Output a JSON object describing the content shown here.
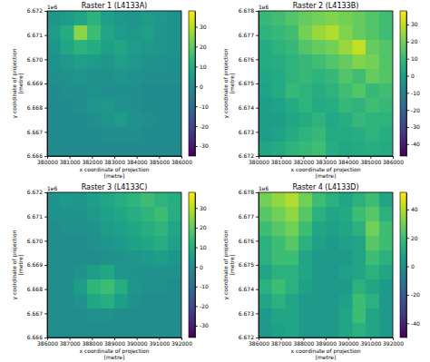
{
  "chart_data": [
    {
      "type": "heatmap",
      "title": "Raster 1 (L4133A)",
      "xlabel": "x coordinate of projection\n[metre]",
      "ylabel": "y coordinate of projection\n[metre]",
      "y_offset_label": "1e6",
      "xlim": [
        380000,
        386000
      ],
      "ylim": [
        6666000,
        6672000
      ],
      "xticks": [
        380000,
        381000,
        382000,
        383000,
        384000,
        385000,
        386000
      ],
      "yticks": [
        {
          "value": 6666000,
          "label": "6.666"
        },
        {
          "value": 6667000,
          "label": "6.667"
        },
        {
          "value": 6668000,
          "label": "6.668"
        },
        {
          "value": 6669000,
          "label": "6.669"
        },
        {
          "value": 6670000,
          "label": "6.670"
        },
        {
          "value": 6671000,
          "label": "6.671"
        },
        {
          "value": 6672000,
          "label": "6.672"
        }
      ],
      "x_edges": [
        380000,
        380600,
        381200,
        381800,
        382400,
        383000,
        383600,
        384200,
        384800,
        385400,
        386000
      ],
      "y_edges": [
        6672000,
        6671400,
        6670800,
        6670200,
        6669600,
        6669000,
        6668400,
        6667800,
        6667200,
        6666600,
        6666000
      ],
      "cells": [
        [
          3,
          5,
          8,
          12,
          6,
          4,
          3,
          5,
          4,
          2
        ],
        [
          5,
          10,
          25,
          15,
          8,
          5,
          4,
          6,
          3,
          2
        ],
        [
          3,
          8,
          12,
          10,
          6,
          8,
          5,
          4,
          3,
          2
        ],
        [
          2,
          4,
          6,
          5,
          3,
          6,
          4,
          2,
          2,
          1
        ],
        [
          1,
          2,
          3,
          2,
          2,
          3,
          2,
          1,
          1,
          1
        ],
        [
          0,
          1,
          1,
          2,
          1,
          1,
          1,
          0,
          0,
          0
        ],
        [
          0,
          0,
          1,
          3,
          4,
          2,
          1,
          0,
          0,
          0
        ],
        [
          0,
          0,
          0,
          1,
          3,
          5,
          2,
          1,
          0,
          0
        ],
        [
          0,
          0,
          0,
          0,
          1,
          1,
          1,
          0,
          0,
          0
        ],
        [
          0,
          0,
          0,
          0,
          0,
          0,
          0,
          0,
          0,
          0
        ]
      ],
      "colorbar": {
        "range": [
          -35,
          38
        ],
        "ticks": [
          -30,
          -20,
          -10,
          0,
          10,
          20,
          30
        ]
      }
    },
    {
      "type": "heatmap",
      "title": "Raster 2 (L4133B)",
      "xlabel": "x coordinate of projection\n[metre]",
      "ylabel": "y coordinate of projection\n[metre]",
      "y_offset_label": "1e6",
      "xlim": [
        380000,
        386000
      ],
      "ylim": [
        6672000,
        6678000
      ],
      "xticks": [
        380000,
        381000,
        382000,
        383000,
        384000,
        385000,
        386000
      ],
      "yticks": [
        {
          "value": 6672000,
          "label": "6.672"
        },
        {
          "value": 6673000,
          "label": "6.673"
        },
        {
          "value": 6674000,
          "label": "6.674"
        },
        {
          "value": 6675000,
          "label": "6.675"
        },
        {
          "value": 6676000,
          "label": "6.676"
        },
        {
          "value": 6677000,
          "label": "6.677"
        },
        {
          "value": 6678000,
          "label": "6.678"
        }
      ],
      "x_edges": [
        380000,
        380600,
        381200,
        381800,
        382400,
        383000,
        383600,
        384200,
        384800,
        385400,
        386000
      ],
      "y_edges": [
        6678000,
        6677400,
        6676800,
        6676200,
        6675600,
        6675000,
        6674400,
        6673800,
        6673200,
        6672600,
        6672000
      ],
      "cells": [
        [
          10,
          12,
          15,
          18,
          20,
          22,
          20,
          18,
          15,
          12
        ],
        [
          8,
          10,
          12,
          20,
          25,
          28,
          22,
          18,
          15,
          12
        ],
        [
          5,
          8,
          10,
          15,
          18,
          20,
          25,
          30,
          18,
          15
        ],
        [
          5,
          6,
          8,
          10,
          12,
          15,
          18,
          22,
          20,
          15
        ],
        [
          3,
          5,
          8,
          10,
          8,
          10,
          15,
          12,
          18,
          15
        ],
        [
          2,
          5,
          10,
          8,
          6,
          8,
          12,
          15,
          10,
          12
        ],
        [
          0,
          2,
          5,
          8,
          5,
          6,
          10,
          8,
          12,
          10
        ],
        [
          0,
          0,
          3,
          5,
          8,
          4,
          6,
          10,
          8,
          8
        ],
        [
          0,
          2,
          5,
          8,
          10,
          5,
          5,
          6,
          8,
          6
        ],
        [
          3,
          5,
          8,
          10,
          12,
          6,
          4,
          5,
          6,
          5
        ]
      ],
      "colorbar": {
        "range": [
          -47,
          38
        ],
        "ticks": [
          -40,
          -30,
          -20,
          -10,
          0,
          10,
          20,
          30
        ]
      }
    },
    {
      "type": "heatmap",
      "title": "Raster 3 (L4133C)",
      "xlabel": "x coordinate of projection\n[metre]",
      "ylabel": "y coordinate of projection\n[metre]",
      "y_offset_label": "1e6",
      "xlim": [
        386000,
        392000
      ],
      "ylim": [
        6666000,
        6672000
      ],
      "xticks": [
        386000,
        387000,
        388000,
        389000,
        390000,
        391000,
        392000
      ],
      "yticks": [
        {
          "value": 6666000,
          "label": "6.666"
        },
        {
          "value": 6667000,
          "label": "6.667"
        },
        {
          "value": 6668000,
          "label": "6.668"
        },
        {
          "value": 6669000,
          "label": "6.669"
        },
        {
          "value": 6670000,
          "label": "6.670"
        },
        {
          "value": 6671000,
          "label": "6.671"
        },
        {
          "value": 6672000,
          "label": "6.672"
        }
      ],
      "x_edges": [
        386000,
        386600,
        387200,
        387800,
        388400,
        389000,
        389600,
        390200,
        390800,
        391400,
        392000
      ],
      "y_edges": [
        6672000,
        6671400,
        6670800,
        6670200,
        6669600,
        6669000,
        6668400,
        6667800,
        6667200,
        6666600,
        6666000
      ],
      "cells": [
        [
          2,
          4,
          3,
          5,
          8,
          10,
          12,
          15,
          12,
          10
        ],
        [
          1,
          2,
          2,
          4,
          6,
          8,
          10,
          12,
          15,
          10
        ],
        [
          0,
          1,
          1,
          2,
          5,
          6,
          8,
          10,
          12,
          8
        ],
        [
          0,
          0,
          0,
          1,
          3,
          4,
          6,
          8,
          10,
          6
        ],
        [
          0,
          0,
          0,
          0,
          1,
          2,
          3,
          4,
          5,
          3
        ],
        [
          0,
          0,
          2,
          5,
          8,
          3,
          2,
          2,
          2,
          1
        ],
        [
          0,
          0,
          5,
          12,
          15,
          10,
          3,
          1,
          1,
          0
        ],
        [
          0,
          0,
          2,
          8,
          10,
          5,
          1,
          0,
          0,
          0
        ],
        [
          0,
          0,
          0,
          1,
          1,
          0,
          0,
          0,
          0,
          0
        ],
        [
          0,
          0,
          0,
          0,
          0,
          0,
          0,
          0,
          0,
          0
        ]
      ],
      "colorbar": {
        "range": [
          -36,
          38
        ],
        "ticks": [
          -30,
          -20,
          -10,
          0,
          10,
          20,
          30
        ]
      }
    },
    {
      "type": "heatmap",
      "title": "Raster 4 (L4133D)",
      "xlabel": "x coordinate of projection\n[metre]",
      "ylabel": "y coordinate of projection\n[metre]",
      "y_offset_label": "1e6",
      "xlim": [
        386000,
        392000
      ],
      "ylim": [
        6672000,
        6678000
      ],
      "xticks": [
        386000,
        387000,
        388000,
        389000,
        390000,
        391000,
        392000
      ],
      "yticks": [
        {
          "value": 6672000,
          "label": "6.672"
        },
        {
          "value": 6673000,
          "label": "6.673"
        },
        {
          "value": 6674000,
          "label": "6.674"
        },
        {
          "value": 6675000,
          "label": "6.675"
        },
        {
          "value": 6676000,
          "label": "6.676"
        },
        {
          "value": 6677000,
          "label": "6.677"
        },
        {
          "value": 6678000,
          "label": "6.678"
        }
      ],
      "x_edges": [
        386000,
        386600,
        387200,
        387800,
        388400,
        389000,
        389600,
        390200,
        390800,
        391400,
        392000
      ],
      "y_edges": [
        6678000,
        6677400,
        6676800,
        6676200,
        6675600,
        6675000,
        6674400,
        6673800,
        6673200,
        6672600,
        6672000
      ],
      "cells": [
        [
          30,
          35,
          40,
          30,
          20,
          15,
          10,
          15,
          20,
          10
        ],
        [
          25,
          30,
          35,
          25,
          15,
          10,
          12,
          20,
          25,
          15
        ],
        [
          20,
          25,
          30,
          20,
          10,
          8,
          10,
          15,
          30,
          20
        ],
        [
          15,
          20,
          25,
          15,
          8,
          5,
          8,
          10,
          25,
          20
        ],
        [
          15,
          20,
          20,
          10,
          5,
          5,
          5,
          10,
          20,
          15
        ],
        [
          10,
          15,
          15,
          10,
          5,
          5,
          8,
          10,
          15,
          10
        ],
        [
          15,
          20,
          15,
          8,
          5,
          5,
          5,
          15,
          10,
          5
        ],
        [
          10,
          15,
          10,
          5,
          5,
          5,
          8,
          20,
          15,
          5
        ],
        [
          5,
          10,
          10,
          5,
          5,
          5,
          10,
          20,
          10,
          5
        ],
        [
          5,
          8,
          10,
          5,
          5,
          5,
          10,
          15,
          10,
          5
        ]
      ],
      "colorbar": {
        "range": [
          -50,
          52
        ],
        "ticks": [
          -40,
          -20,
          0,
          20,
          40
        ]
      }
    }
  ]
}
